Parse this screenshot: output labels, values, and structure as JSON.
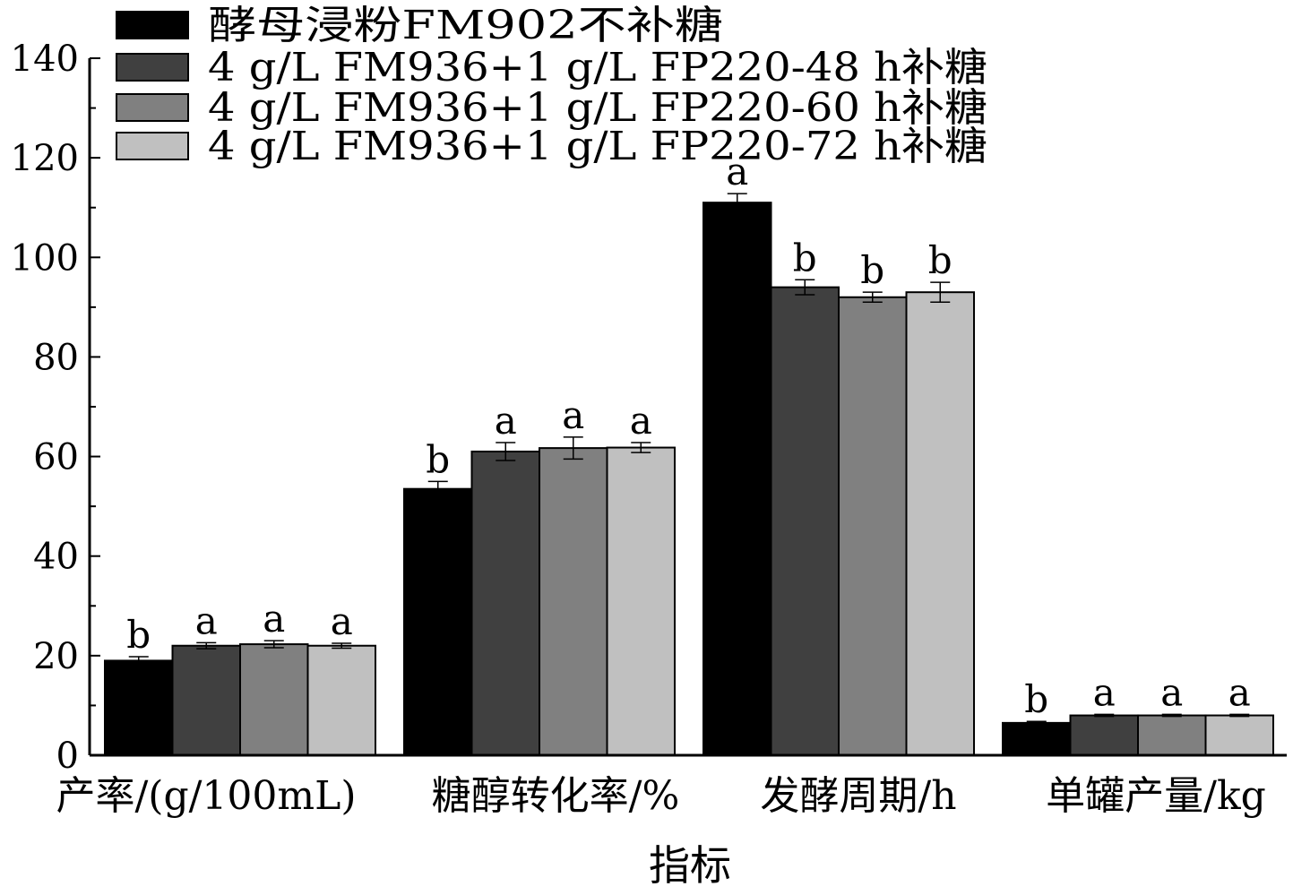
{
  "chart_data": {
    "type": "bar",
    "xlabel": "指标",
    "ylabel": "",
    "ylim": [
      0,
      140
    ],
    "yticks": [
      0,
      20,
      40,
      60,
      80,
      100,
      120,
      140
    ],
    "ytick_labels": [
      "0",
      "20",
      "40",
      "60",
      "80",
      "100",
      "120",
      "140"
    ],
    "grid": false,
    "legend_position": "top-left",
    "categories": [
      "产率/(g/100mL)",
      "糖醇转化率/%",
      "发酵周期/h",
      "单罐产量/kg"
    ],
    "series": [
      {
        "name": "酵母浸粉FM902不补糖",
        "color": "#000000",
        "values": [
          19,
          53.5,
          111,
          6.5
        ],
        "errors": [
          0.8,
          1.5,
          1.8,
          0.3
        ],
        "labels": [
          "b",
          "b",
          "a",
          "b"
        ]
      },
      {
        "name": "4 g/L FM936+1 g/L FP220-48 h补糖",
        "color": "#404040",
        "values": [
          22,
          61,
          94,
          8
        ],
        "errors": [
          0.6,
          1.8,
          1.5,
          0.2
        ],
        "labels": [
          "a",
          "a",
          "b",
          "a"
        ]
      },
      {
        "name": "4 g/L FM936+1 g/L FP220-60 h补糖",
        "color": "#808080",
        "values": [
          22.3,
          61.7,
          92,
          8
        ],
        "errors": [
          0.7,
          2.2,
          1.0,
          0.2
        ],
        "labels": [
          "a",
          "a",
          "b",
          "a"
        ]
      },
      {
        "name": "4 g/L FM936+1 g/L FP220-72 h补糖",
        "color": "#c0c0c0",
        "values": [
          22,
          61.8,
          93,
          8
        ],
        "errors": [
          0.5,
          1.0,
          2.0,
          0.2
        ],
        "labels": [
          "a",
          "a",
          "b",
          "a"
        ]
      }
    ]
  }
}
